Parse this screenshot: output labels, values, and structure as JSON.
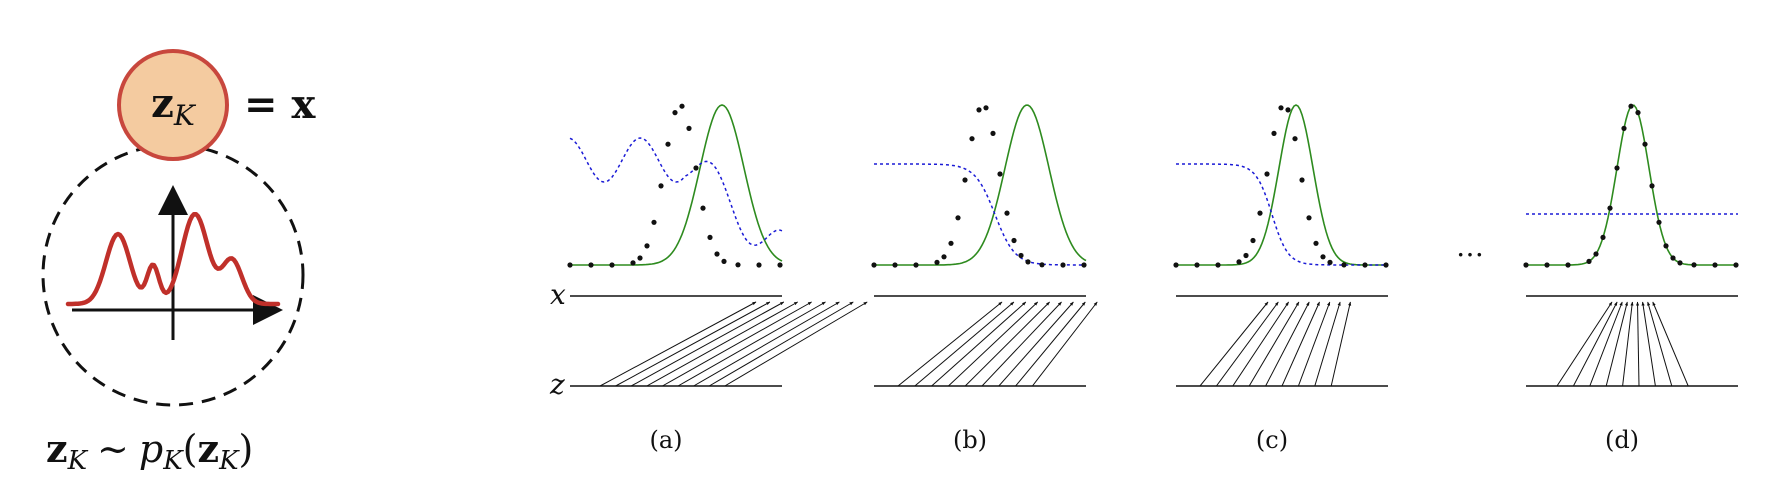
{
  "left": {
    "node_var": "z",
    "node_sub": "K",
    "equals_text": "= x",
    "eq_var": "z",
    "eq_sub": "K",
    "eq_sim": "∼",
    "eq_p": "p",
    "eq_p_sub": "K",
    "eq_paren_open": "(",
    "eq_arg_var": "z",
    "eq_arg_sub": "K",
    "eq_paren_close": ")",
    "colors": {
      "node_fill": "#f4cba0",
      "node_stroke": "#c8473d",
      "density_curve": "#c0302a"
    }
  },
  "panels": {
    "x_label": "x",
    "z_label": "z",
    "captions": [
      "(a)",
      "(b)",
      "(c)",
      "(d)"
    ],
    "ellipsis": "…",
    "colors": {
      "target": "#111111",
      "learned": "#2e8b1f",
      "ratio": "#1b1bd6",
      "lines": "#111111"
    }
  }
}
